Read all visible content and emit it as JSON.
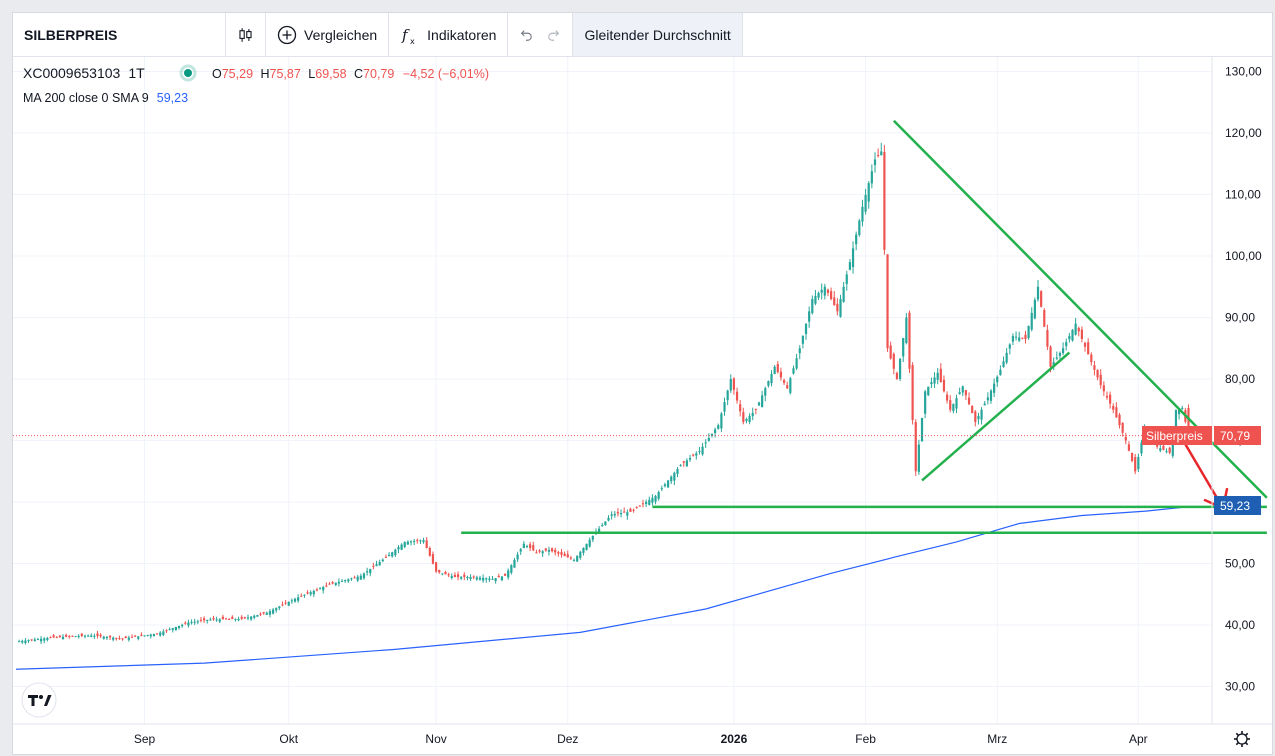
{
  "toolbar": {
    "symbol": "SILBERPREIS",
    "compare_label": "Vergleichen",
    "indicators_label": "Indikatoren",
    "active_indicator_label": "Gleitender Durchschnitt",
    "icons": [
      "candles-icon",
      "plus-circle-icon",
      "function-icon",
      "undo-icon",
      "redo-icon"
    ]
  },
  "legend": {
    "symbol_id": "XC0009653103",
    "interval": "1T",
    "o_label": "O",
    "o_value": "75,29",
    "h_label": "H",
    "h_value": "75,87",
    "l_label": "L",
    "l_value": "69,58",
    "c_label": "C",
    "c_value": "70,79",
    "change": "−4,52 (−6,01%)",
    "ma_label": "MA 200 close 0 SMA 9",
    "ma_value": "59,23"
  },
  "price_axis": {
    "ticks": [
      "130,00",
      "120,00",
      "110,00",
      "100,00",
      "90,00",
      "80,00",
      "70,00",
      "60,00",
      "50,00",
      "40,00",
      "30,00"
    ],
    "price_tag_label": "Silberpreis",
    "price_tag_value": "70,79",
    "ma_tag_value": "59,23"
  },
  "time_axis": {
    "labels": [
      "Sep",
      "Okt",
      "Nov",
      "Dez",
      "2026",
      "Feb",
      "Mrz",
      "Apr"
    ]
  },
  "colors": {
    "up": "#26a69a",
    "down": "#ef5350",
    "ma": "#2962ff",
    "drawing": "#22b14c",
    "arrow": "#e8272c"
  },
  "chart_data": {
    "type": "candlestick",
    "title": "SILBERPREIS",
    "ylim": [
      25.5,
      133
    ],
    "series": [
      {
        "name": "Silberpreis",
        "kind": "candles",
        "anchors_close": [
          [
            0,
            37.3
          ],
          [
            12,
            38.0
          ],
          [
            24,
            38.3
          ],
          [
            34,
            37.8
          ],
          [
            45,
            38.6
          ],
          [
            55,
            40.4
          ],
          [
            62,
            40.9
          ],
          [
            72,
            41.0
          ],
          [
            80,
            42.0
          ],
          [
            90,
            44.5
          ],
          [
            100,
            46.6
          ],
          [
            110,
            48.0
          ],
          [
            118,
            51.0
          ],
          [
            124,
            53.5
          ],
          [
            130,
            53.8
          ],
          [
            134,
            48.7
          ],
          [
            140,
            47.8
          ],
          [
            146,
            47.8
          ],
          [
            152,
            47.5
          ],
          [
            156,
            48.0
          ],
          [
            162,
            53.2
          ],
          [
            166,
            51.8
          ],
          [
            170,
            52.2
          ],
          [
            178,
            50.6
          ],
          [
            184,
            54.5
          ],
          [
            190,
            58.0
          ],
          [
            196,
            58.4
          ],
          [
            204,
            61.0
          ],
          [
            212,
            66.0
          ],
          [
            218,
            68.3
          ],
          [
            224,
            72.5
          ],
          [
            228,
            80.0
          ],
          [
            232,
            73.0
          ],
          [
            236,
            75.0
          ],
          [
            242,
            82.0
          ],
          [
            246,
            78.5
          ],
          [
            250,
            85.0
          ],
          [
            254,
            93.0
          ],
          [
            258,
            95.0
          ],
          [
            262,
            91.0
          ],
          [
            266,
            99.0
          ],
          [
            270,
            108.0
          ],
          [
            274,
            115.7
          ],
          [
            276,
            117.0
          ],
          [
            278,
            85.0
          ],
          [
            281,
            80.0
          ],
          [
            284,
            90.0
          ],
          [
            287,
            65.0
          ],
          [
            290,
            78.0
          ],
          [
            294,
            81.0
          ],
          [
            298,
            75.0
          ],
          [
            302,
            78.8
          ],
          [
            306,
            73.0
          ],
          [
            310,
            77.0
          ],
          [
            314,
            81.5
          ],
          [
            318,
            87.0
          ],
          [
            322,
            86.5
          ],
          [
            326,
            95.0
          ],
          [
            330,
            82.0
          ],
          [
            334,
            85.0
          ],
          [
            338,
            89.0
          ],
          [
            342,
            84.0
          ],
          [
            346,
            79.0
          ],
          [
            350,
            75.0
          ],
          [
            354,
            70.0
          ],
          [
            357,
            65.0
          ],
          [
            360,
            72.0
          ],
          [
            364,
            69.0
          ],
          [
            368,
            68.0
          ],
          [
            370,
            75.0
          ],
          [
            372,
            75.3
          ],
          [
            374,
            70.8
          ]
        ],
        "last": {
          "open": 75.29,
          "high": 75.87,
          "low": 69.58,
          "close": 70.79
        }
      },
      {
        "name": "MA 200 close 0 SMA 9",
        "kind": "line",
        "x": [
          0,
          60,
          120,
          180,
          220,
          260,
          280,
          300,
          320,
          340,
          360,
          374
        ],
        "y": [
          32.8,
          33.8,
          36.0,
          38.8,
          42.6,
          48.4,
          51.0,
          53.5,
          56.5,
          57.8,
          58.5,
          59.23
        ]
      }
    ],
    "annotations": [
      {
        "type": "trendline",
        "from": [
          280,
          122.0
        ],
        "to": [
          399,
          60.7
        ]
      },
      {
        "type": "trendline",
        "from": [
          289,
          63.5
        ],
        "to": [
          336,
          84.3
        ]
      },
      {
        "type": "hline",
        "from": [
          142,
          55.0
        ],
        "to": [
          399,
          55.0
        ]
      },
      {
        "type": "hline",
        "from": [
          203,
          59.2
        ],
        "to": [
          399,
          59.2
        ]
      },
      {
        "type": "arrow",
        "from": [
          370,
          72.0
        ],
        "to": [
          385,
          59.0
        ]
      }
    ],
    "grid": true,
    "y_axis_position": "right"
  }
}
